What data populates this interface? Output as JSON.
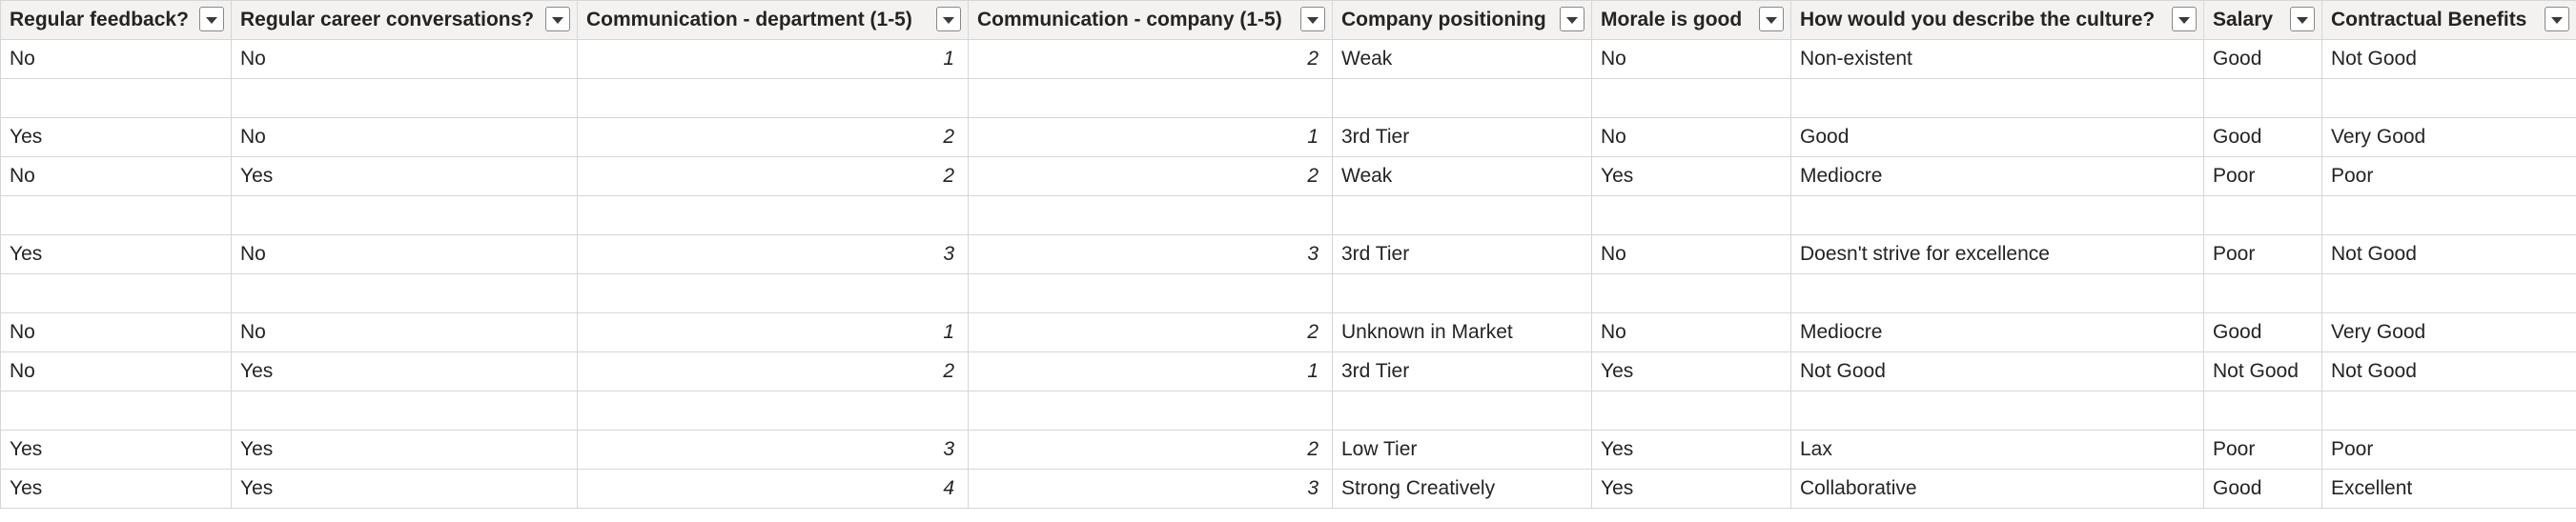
{
  "table": {
    "columns": [
      {
        "key": "feedback",
        "label": "Regular feedback?",
        "numeric": false
      },
      {
        "key": "career",
        "label": "Regular career conversations?",
        "numeric": false
      },
      {
        "key": "comm_dept",
        "label": "Communication - department (1-5)",
        "numeric": true
      },
      {
        "key": "comm_company",
        "label": "Communication - company (1-5)",
        "numeric": true
      },
      {
        "key": "positioning",
        "label": "Company positioning",
        "numeric": false
      },
      {
        "key": "morale",
        "label": "Morale is good",
        "numeric": false
      },
      {
        "key": "culture",
        "label": "How would you describe the culture?",
        "numeric": false
      },
      {
        "key": "salary",
        "label": "Salary",
        "numeric": false
      },
      {
        "key": "benefits",
        "label": "Contractual Benefits",
        "numeric": false
      }
    ],
    "rows": [
      [
        "No",
        "No",
        "1",
        "2",
        "Weak",
        "No",
        "Non-existent",
        "Good",
        "Not Good"
      ],
      [
        "",
        "",
        "",
        "",
        "",
        "",
        "",
        "",
        ""
      ],
      [
        "Yes",
        "No",
        "2",
        "1",
        "3rd Tier",
        "No",
        "Good",
        "Good",
        "Very Good"
      ],
      [
        "No",
        "Yes",
        "2",
        "2",
        "Weak",
        "Yes",
        "Mediocre",
        "Poor",
        "Poor"
      ],
      [
        "",
        "",
        "",
        "",
        "",
        "",
        "",
        "",
        ""
      ],
      [
        "Yes",
        "No",
        "3",
        "3",
        "3rd Tier",
        "No",
        "Doesn't strive for excellence",
        "Poor",
        "Not Good"
      ],
      [
        "",
        "",
        "",
        "",
        "",
        "",
        "",
        "",
        ""
      ],
      [
        "No",
        "No",
        "1",
        "2",
        "Unknown in Market",
        "No",
        "Mediocre",
        "Good",
        "Very Good"
      ],
      [
        "No",
        "Yes",
        "2",
        "1",
        "3rd Tier",
        "Yes",
        "Not Good",
        "Not Good",
        "Not Good"
      ],
      [
        "",
        "",
        "",
        "",
        "",
        "",
        "",
        "",
        ""
      ],
      [
        "Yes",
        "Yes",
        "3",
        "2",
        "Low Tier",
        "Yes",
        "Lax",
        "Poor",
        "Poor"
      ],
      [
        "Yes",
        "Yes",
        "4",
        "3",
        "Strong Creatively",
        "Yes",
        "Collaborative",
        "Good",
        "Excellent"
      ]
    ]
  },
  "icons": {
    "filter": "filter-dropdown-icon"
  }
}
